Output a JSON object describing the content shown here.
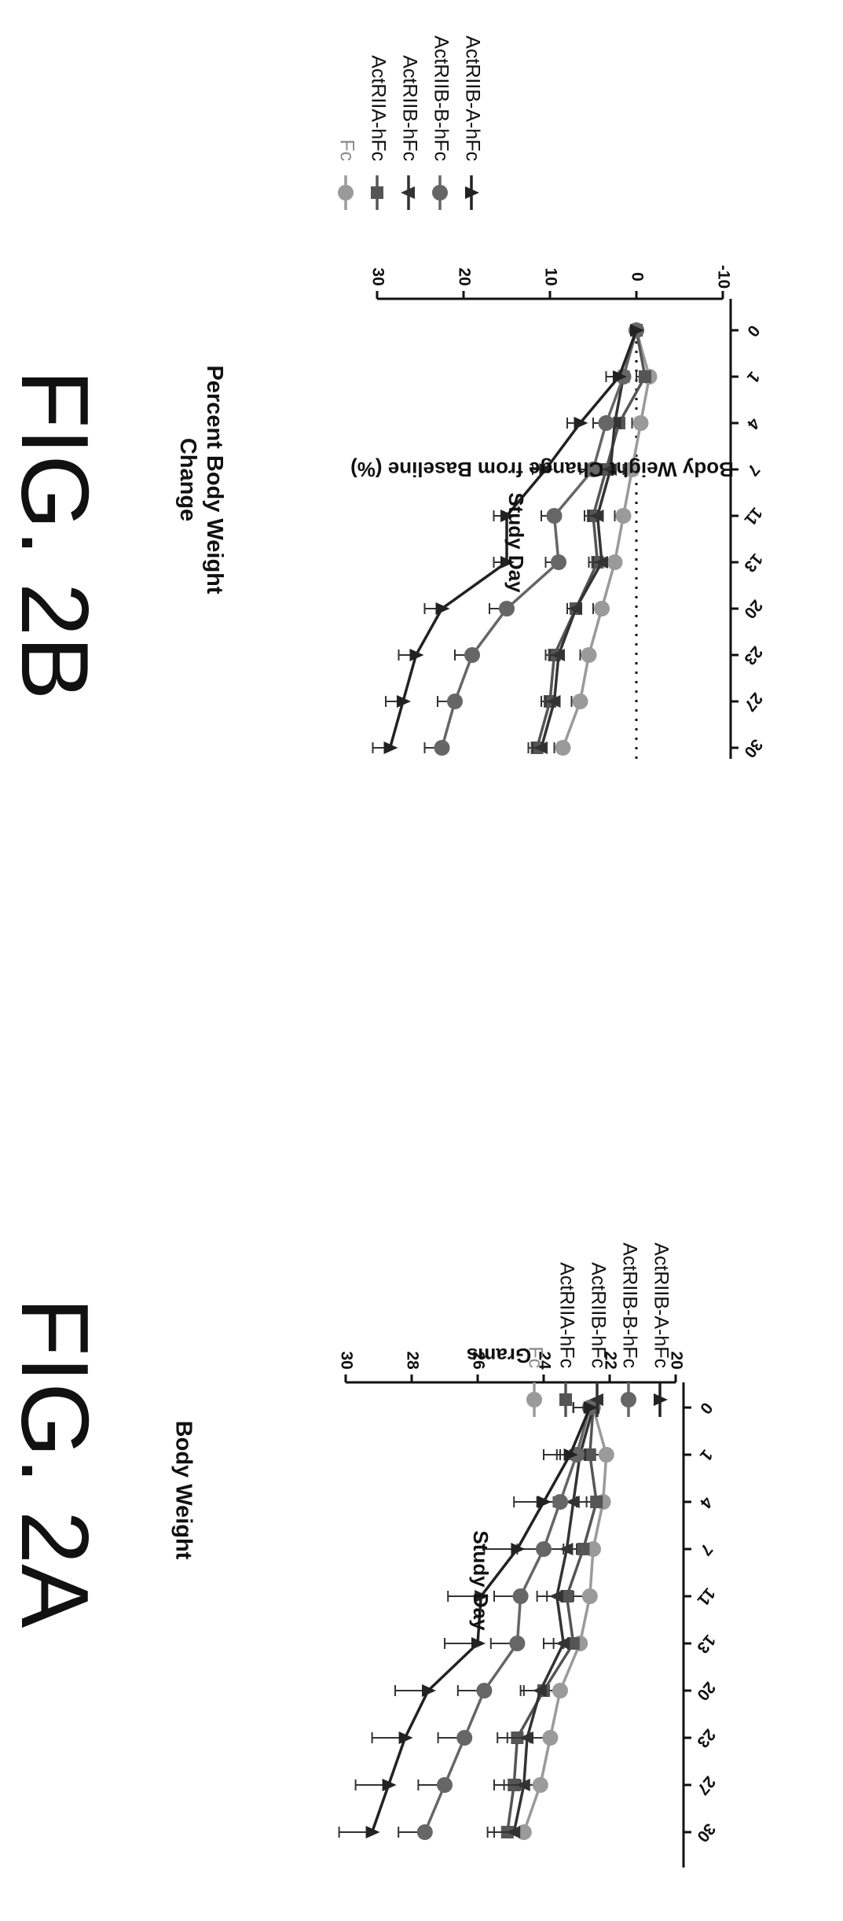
{
  "figures": {
    "a_title": "FIG. 2A",
    "b_title": "FIG. 2B"
  },
  "chart_data": [
    {
      "type": "line",
      "title": "Body Weight",
      "xlabel": "Study Day",
      "ylabel": "Grams",
      "x": [
        0,
        1,
        4,
        7,
        11,
        13,
        20,
        23,
        27,
        30
      ],
      "x_tick_labels": [
        "0",
        "1",
        "4",
        "7",
        "11",
        "13",
        "20",
        "23",
        "27",
        "30"
      ],
      "ylim": [
        20,
        30
      ],
      "y_ticks": [
        20,
        22,
        24,
        26,
        28,
        30
      ],
      "error_bars": true,
      "legend_position": "right",
      "series": [
        {
          "name": "Fc",
          "marker": "circle",
          "color": "#9a9a9a",
          "values": [
            22.5,
            22.1,
            22.2,
            22.5,
            22.6,
            22.9,
            23.5,
            23.8,
            24.1,
            24.6
          ],
          "errors": [
            0.6,
            0.5,
            0.5,
            0.5,
            0.5,
            0.5,
            0.6,
            0.6,
            0.6,
            0.6
          ]
        },
        {
          "name": "ActRIIA-hFc",
          "marker": "square",
          "color": "#555555",
          "values": [
            22.5,
            22.6,
            22.4,
            22.8,
            23.3,
            23.1,
            24.0,
            24.8,
            24.9,
            25.1
          ],
          "errors": [
            0.6,
            0.6,
            0.6,
            0.6,
            0.6,
            0.6,
            0.6,
            0.6,
            0.6,
            0.6
          ]
        },
        {
          "name": "ActRIIB-hFc",
          "marker": "triangle-up",
          "color": "#333333",
          "values": [
            22.5,
            22.9,
            23.1,
            23.3,
            23.6,
            23.4,
            24.1,
            24.5,
            24.6,
            24.9
          ],
          "errors": [
            0.6,
            0.6,
            0.6,
            0.6,
            0.6,
            0.6,
            0.6,
            0.6,
            0.6,
            0.6
          ]
        },
        {
          "name": "ActRIIB-B-hFc",
          "marker": "circle",
          "color": "#666666",
          "values": [
            22.6,
            23.0,
            23.5,
            24.0,
            24.7,
            24.8,
            25.8,
            26.4,
            27.0,
            27.6
          ],
          "errors": [
            0.5,
            0.6,
            0.7,
            0.8,
            0.8,
            0.8,
            0.8,
            0.8,
            0.8,
            0.8
          ]
        },
        {
          "name": "ActRIIB-A-hFc",
          "marker": "triangle-down",
          "color": "#222222",
          "values": [
            22.6,
            23.2,
            24.0,
            24.8,
            25.9,
            26.0,
            27.5,
            28.2,
            28.7,
            29.2
          ],
          "errors": [
            0.5,
            0.8,
            0.9,
            1.0,
            1.0,
            1.0,
            1.0,
            1.0,
            1.0,
            1.0
          ]
        }
      ]
    },
    {
      "type": "line",
      "title": "Percent Body Weight Change",
      "xlabel": "Study Day",
      "ylabel": "Body Weight Change from Baseline (%)",
      "x": [
        0,
        1,
        4,
        7,
        11,
        13,
        20,
        23,
        27,
        30
      ],
      "x_tick_labels": [
        "0",
        "1",
        "4",
        "7",
        "11",
        "13",
        "20",
        "23",
        "27",
        "30"
      ],
      "ylim": [
        -10,
        30
      ],
      "y_ticks": [
        -10,
        0,
        10,
        20,
        30
      ],
      "reference_line": 0,
      "error_bars": true,
      "legend_position": "right",
      "series": [
        {
          "name": "Fc",
          "marker": "circle",
          "color": "#9a9a9a",
          "values": [
            0,
            -1.5,
            -0.5,
            0.5,
            1.5,
            2.5,
            4.0,
            5.5,
            6.5,
            8.5
          ],
          "errors": [
            0,
            1.0,
            1.0,
            1.0,
            1.0,
            1.0,
            1.0,
            1.0,
            1.0,
            1.0
          ]
        },
        {
          "name": "ActRIIA-hFc",
          "marker": "square",
          "color": "#555555",
          "values": [
            0,
            -1.0,
            2.0,
            3.5,
            5.0,
            4.5,
            7.0,
            9.5,
            10.0,
            11.5
          ],
          "errors": [
            0,
            1.0,
            1.0,
            1.0,
            1.0,
            1.0,
            1.0,
            1.0,
            1.0,
            1.0
          ]
        },
        {
          "name": "ActRIIB-hFc",
          "marker": "triangle-up",
          "color": "#333333",
          "values": [
            0,
            1.5,
            2.5,
            3.0,
            4.5,
            4.0,
            7.0,
            9.0,
            9.5,
            11.0
          ],
          "errors": [
            0,
            1.0,
            1.0,
            1.0,
            1.0,
            1.0,
            1.0,
            1.0,
            1.0,
            1.0
          ]
        },
        {
          "name": "ActRIIB-B-hFc",
          "marker": "circle",
          "color": "#666666",
          "values": [
            0,
            1.5,
            3.5,
            5.0,
            9.5,
            9.0,
            15.0,
            19.0,
            21.0,
            22.5
          ],
          "errors": [
            0,
            1.0,
            1.5,
            1.5,
            1.5,
            1.5,
            2.0,
            2.0,
            2.0,
            2.0
          ]
        },
        {
          "name": "ActRIIB-A-hFc",
          "marker": "triangle-down",
          "color": "#222222",
          "values": [
            0,
            2.0,
            6.5,
            10.5,
            15.0,
            15.0,
            22.5,
            25.5,
            27.0,
            28.5
          ],
          "errors": [
            0,
            1.5,
            1.5,
            1.5,
            1.5,
            1.5,
            2.0,
            2.0,
            2.0,
            2.0
          ]
        }
      ]
    }
  ]
}
